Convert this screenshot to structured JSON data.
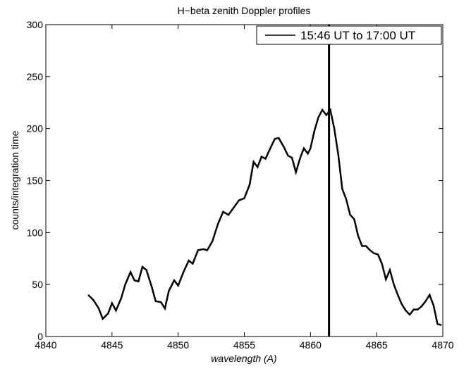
{
  "chart_data": {
    "type": "line",
    "title": "H−beta zenith Doppler profiles",
    "x_label": "wavelength (A)",
    "y_label": "counts/integration time",
    "x": [
      4843.2,
      4843.6,
      4844.0,
      4844.3,
      4844.7,
      4845.0,
      4845.3,
      4845.7,
      4846.0,
      4846.4,
      4846.7,
      4847.0,
      4847.3,
      4847.6,
      4848.0,
      4848.3,
      4848.7,
      4849.0,
      4849.3,
      4849.7,
      4850.0,
      4850.4,
      4850.8,
      4851.1,
      4851.5,
      4851.9,
      4852.2,
      4852.6,
      4853.0,
      4853.4,
      4853.8,
      4854.2,
      4854.6,
      4855.0,
      4855.4,
      4855.7,
      4856.0,
      4856.3,
      4856.6,
      4857.0,
      4857.3,
      4857.6,
      4858.0,
      4858.3,
      4858.6,
      4858.9,
      4859.2,
      4859.5,
      4859.8,
      4860.0,
      4860.3,
      4860.6,
      4860.9,
      4861.2,
      4861.5,
      4861.8,
      4862.1,
      4862.4,
      4862.7,
      4863.0,
      4863.3,
      4863.6,
      4863.9,
      4864.2,
      4864.5,
      4864.8,
      4865.1,
      4865.4,
      4865.7,
      4866.0,
      4866.3,
      4866.6,
      4866.9,
      4867.2,
      4867.5,
      4867.8,
      4868.1,
      4868.4,
      4868.7,
      4869.0,
      4869.3,
      4869.6,
      4869.9
    ],
    "series": [
      {
        "name": "15:46 UT to 17:00 UT",
        "color": "#000000",
        "values": [
          40,
          35,
          27,
          17,
          22,
          32,
          25,
          37,
          50,
          62,
          54,
          53,
          67,
          64,
          48,
          34,
          33,
          27,
          44,
          54,
          49,
          62,
          73,
          70,
          83,
          84,
          83,
          92,
          108,
          120,
          117,
          124,
          131,
          133,
          146,
          168,
          163,
          173,
          171,
          182,
          190,
          191,
          182,
          174,
          172,
          158,
          171,
          181,
          176,
          181,
          198,
          211,
          218,
          213,
          218,
          200,
          175,
          142,
          132,
          117,
          113,
          97,
          87,
          87,
          83,
          80,
          79,
          70,
          55,
          64,
          50,
          40,
          31,
          25,
          21,
          26,
          26,
          29,
          34,
          40,
          30,
          12,
          11
        ]
      }
    ],
    "vline": 4861.4,
    "xlim": [
      4840,
      4870
    ],
    "xticks": [
      4840,
      4845,
      4850,
      4855,
      4860,
      4865,
      4870
    ],
    "ylim": [
      0,
      300
    ],
    "yticks": [
      0,
      50,
      100,
      150,
      200,
      250,
      300
    ],
    "grid": false,
    "legend": "upper right"
  }
}
